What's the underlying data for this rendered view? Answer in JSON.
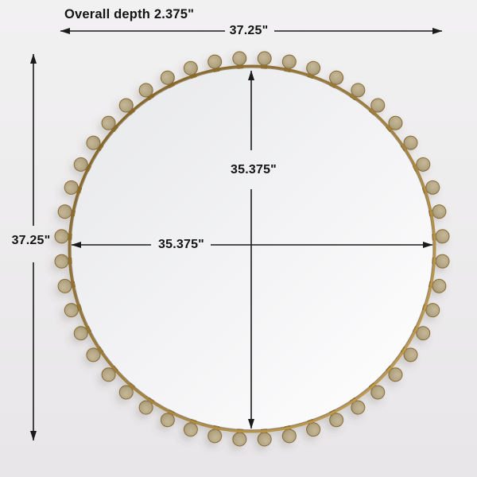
{
  "diagram": {
    "title": "Overall depth 2.375\"",
    "dimensions": {
      "overall_width": "37.25\"",
      "overall_height": "37.25\"",
      "mirror_width": "35.375\"",
      "mirror_height": "35.375\""
    },
    "beads": {
      "count": 48
    },
    "colors": {
      "background_top": "#f2f1f2",
      "background_bottom": "#e8e6e8",
      "line": "#1a1a1a",
      "rim_gold": "#c9a558",
      "rim_dark": "#7a5c22",
      "rim_inner_line": "#6e5420",
      "bead_face_light": "#c6b897",
      "bead_face": "#b2a584",
      "bead_face_edge": "#97875f",
      "bead_ring": "#8a6b33",
      "stem_gold": "#c9a455",
      "mirror_dark": "#e7e8ea",
      "mirror_mid": "#f4f4f6",
      "mirror_light": "#ffffff"
    }
  }
}
